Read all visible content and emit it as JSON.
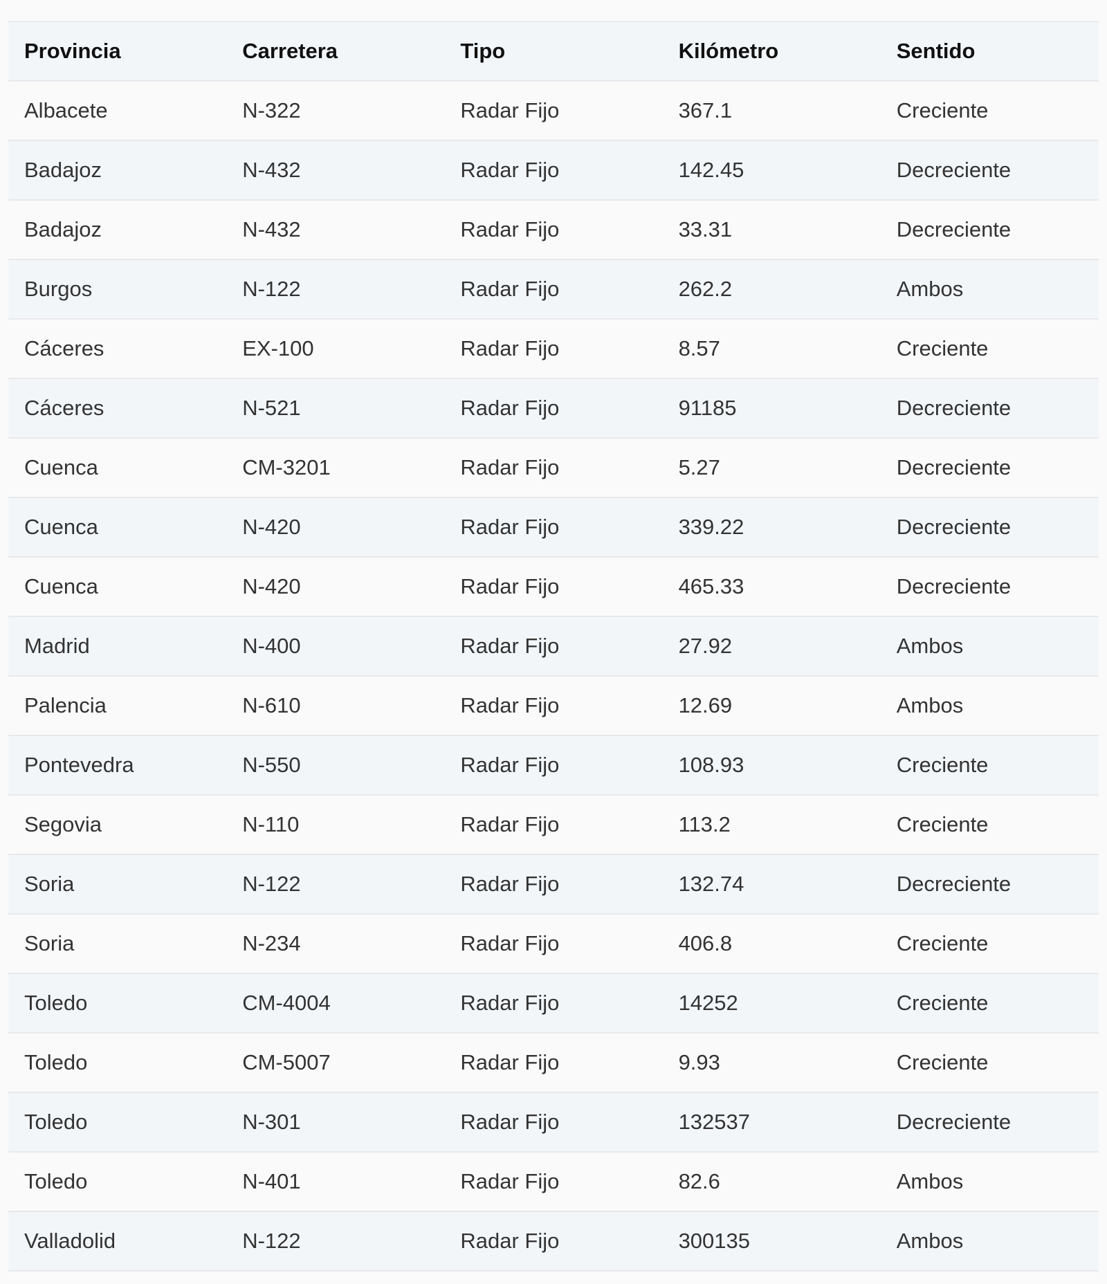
{
  "table": {
    "headers": [
      "Provincia",
      "Carretera",
      "Tipo",
      "Kilómetro",
      "Sentido"
    ],
    "rows": [
      [
        "Albacete",
        "N-322",
        "Radar Fijo",
        "367.1",
        "Creciente"
      ],
      [
        "Badajoz",
        "N-432",
        "Radar Fijo",
        "142.45",
        "Decreciente"
      ],
      [
        "Badajoz",
        "N-432",
        "Radar Fijo",
        "33.31",
        "Decreciente"
      ],
      [
        "Burgos",
        "N-122",
        "Radar Fijo",
        "262.2",
        "Ambos"
      ],
      [
        "Cáceres",
        "EX-100",
        "Radar Fijo",
        "8.57",
        "Creciente"
      ],
      [
        "Cáceres",
        "N-521",
        "Radar Fijo",
        "91185",
        "Decreciente"
      ],
      [
        "Cuenca",
        "CM-3201",
        "Radar Fijo",
        "5.27",
        "Decreciente"
      ],
      [
        "Cuenca",
        "N-420",
        "Radar Fijo",
        "339.22",
        "Decreciente"
      ],
      [
        "Cuenca",
        "N-420",
        "Radar Fijo",
        "465.33",
        "Decreciente"
      ],
      [
        "Madrid",
        "N-400",
        "Radar Fijo",
        "27.92",
        "Ambos"
      ],
      [
        "Palencia",
        "N-610",
        "Radar Fijo",
        "12.69",
        "Ambos"
      ],
      [
        "Pontevedra",
        "N-550",
        "Radar Fijo",
        "108.93",
        "Creciente"
      ],
      [
        "Segovia",
        "N-110",
        "Radar Fijo",
        "113.2",
        "Creciente"
      ],
      [
        "Soria",
        "N-122",
        "Radar Fijo",
        "132.74",
        "Decreciente"
      ],
      [
        "Soria",
        "N-234",
        "Radar Fijo",
        "406.8",
        "Creciente"
      ],
      [
        "Toledo",
        "CM-4004",
        "Radar Fijo",
        "14252",
        "Creciente"
      ],
      [
        "Toledo",
        "CM-5007",
        "Radar Fijo",
        "9.93",
        "Creciente"
      ],
      [
        "Toledo",
        "N-301",
        "Radar Fijo",
        "132537",
        "Decreciente"
      ],
      [
        "Toledo",
        "N-401",
        "Radar Fijo",
        "82.6",
        "Ambos"
      ],
      [
        "Valladolid",
        "N-122",
        "Radar Fijo",
        "300135",
        "Ambos"
      ]
    ]
  }
}
